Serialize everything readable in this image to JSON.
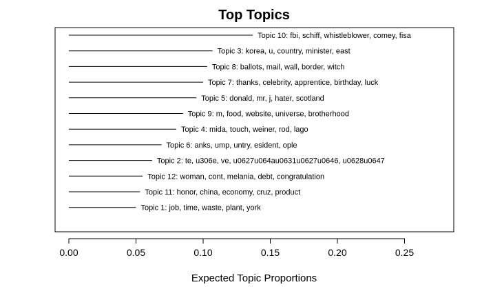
{
  "chart_data": {
    "type": "bar",
    "orientation": "horizontal",
    "title": "Top Topics",
    "xlabel": "Expected Topic Proportions",
    "ylabel": "",
    "xlim": [
      0,
      0.28
    ],
    "x_ticks": [
      "0.00",
      "0.05",
      "0.10",
      "0.15",
      "0.20",
      "0.25"
    ],
    "x_tick_values": [
      0,
      0.05,
      0.1,
      0.15,
      0.2,
      0.25
    ],
    "grid": false,
    "legend": "none",
    "bars": [
      {
        "label": "Topic 10: fbi, schiff, whistleblower, comey, fisa",
        "value": 0.137
      },
      {
        "label": "Topic 3: korea, u, country, minister, east",
        "value": 0.107
      },
      {
        "label": "Topic 8: ballots, mail, wall, border, witch",
        "value": 0.103
      },
      {
        "label": "Topic 7: thanks, celebrity, apprentice, birthday, luck",
        "value": 0.1
      },
      {
        "label": "Topic 5: donald, mr, j, hater, scotland",
        "value": 0.095
      },
      {
        "label": "Topic 9: m, food, website, universe, brotherhood",
        "value": 0.085
      },
      {
        "label": "Topic 4: mida, touch, weiner, rod, lago",
        "value": 0.08
      },
      {
        "label": "Topic 6: anks, ump, untry, esident, ople",
        "value": 0.069
      },
      {
        "label": "Topic 2: te, u306e, ve, u0627u064au0631u0627u0646, u0628u0647",
        "value": 0.062
      },
      {
        "label": "Topic 12: woman, cont, melania, debt, congratulation",
        "value": 0.055
      },
      {
        "label": "Topic 11: honor, china, economy, cruz, product",
        "value": 0.053
      },
      {
        "label": "Topic 1: job, time, waste, plant, york",
        "value": 0.05
      }
    ]
  }
}
